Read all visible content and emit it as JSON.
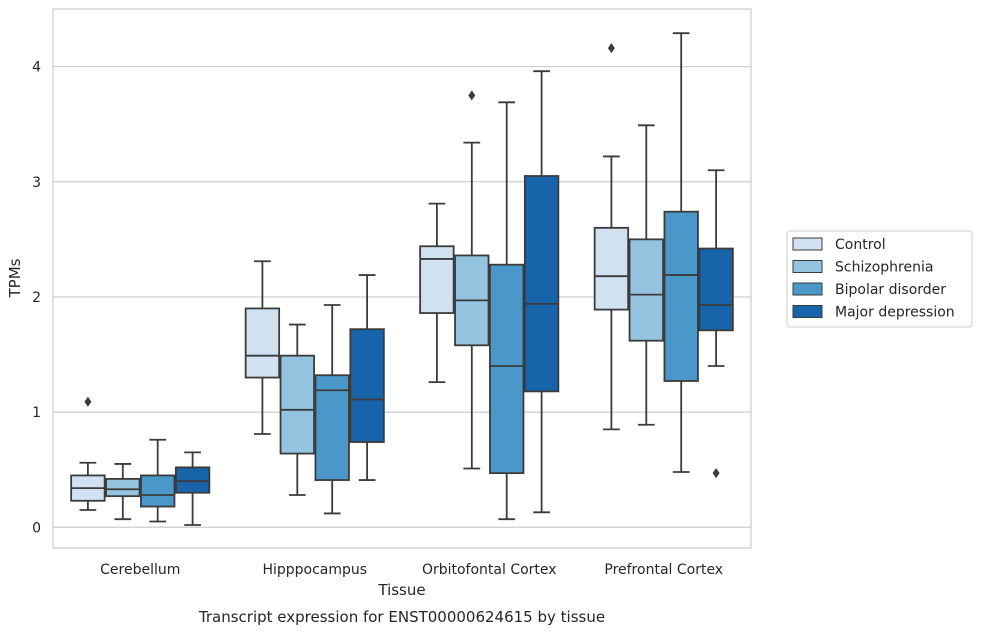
{
  "chart_data": {
    "type": "box",
    "title": "",
    "caption": "Transcript expression for ENST00000624615 by tissue",
    "xlabel": "Tissue",
    "ylabel": "TPMs",
    "ylim": [
      -0.18,
      4.5
    ],
    "yticks": [
      "0",
      "1",
      "2",
      "3",
      "4"
    ],
    "grid": "horizontal",
    "legend_position": "right",
    "categories": [
      "Cerebellum",
      "Hipppocampus",
      "Orbitofontal Cortex",
      "Prefrontal Cortex"
    ],
    "series": [
      {
        "name": "Control",
        "color": "#d0e1f2",
        "boxes": [
          {
            "whisker_low": 0.15,
            "q1": 0.23,
            "median": 0.34,
            "q3": 0.45,
            "whisker_high": 0.56,
            "outliers": [
              1.09
            ]
          },
          {
            "whisker_low": 0.81,
            "q1": 1.3,
            "median": 1.49,
            "q3": 1.9,
            "whisker_high": 2.31,
            "outliers": []
          },
          {
            "whisker_low": 1.26,
            "q1": 1.86,
            "median": 2.33,
            "q3": 2.44,
            "whisker_high": 2.81,
            "outliers": []
          },
          {
            "whisker_low": 0.85,
            "q1": 1.89,
            "median": 2.18,
            "q3": 2.6,
            "whisker_high": 3.22,
            "outliers": [
              4.16
            ]
          }
        ]
      },
      {
        "name": "Schizophrenia",
        "color": "#94c4df",
        "boxes": [
          {
            "whisker_low": 0.07,
            "q1": 0.27,
            "median": 0.33,
            "q3": 0.42,
            "whisker_high": 0.55,
            "outliers": []
          },
          {
            "whisker_low": 0.28,
            "q1": 0.64,
            "median": 1.02,
            "q3": 1.49,
            "whisker_high": 1.76,
            "outliers": []
          },
          {
            "whisker_low": 0.51,
            "q1": 1.58,
            "median": 1.97,
            "q3": 2.36,
            "whisker_high": 3.34,
            "outliers": [
              3.75
            ]
          },
          {
            "whisker_low": 0.89,
            "q1": 1.62,
            "median": 2.02,
            "q3": 2.5,
            "whisker_high": 3.49,
            "outliers": []
          }
        ]
      },
      {
        "name": "Bipolar disorder",
        "color": "#4a98c9",
        "boxes": [
          {
            "whisker_low": 0.05,
            "q1": 0.18,
            "median": 0.28,
            "q3": 0.45,
            "whisker_high": 0.76,
            "outliers": []
          },
          {
            "whisker_low": 0.12,
            "q1": 0.41,
            "median": 1.19,
            "q3": 1.32,
            "whisker_high": 1.93,
            "outliers": []
          },
          {
            "whisker_low": 0.07,
            "q1": 0.47,
            "median": 1.4,
            "q3": 2.28,
            "whisker_high": 3.69,
            "outliers": []
          },
          {
            "whisker_low": 0.48,
            "q1": 1.27,
            "median": 2.19,
            "q3": 2.74,
            "whisker_high": 4.29,
            "outliers": []
          }
        ]
      },
      {
        "name": "Major depression",
        "color": "#1764ab",
        "boxes": [
          {
            "whisker_low": 0.02,
            "q1": 0.3,
            "median": 0.4,
            "q3": 0.52,
            "whisker_high": 0.65,
            "outliers": []
          },
          {
            "whisker_low": 0.41,
            "q1": 0.74,
            "median": 1.11,
            "q3": 1.72,
            "whisker_high": 2.19,
            "outliers": []
          },
          {
            "whisker_low": 0.13,
            "q1": 1.18,
            "median": 1.94,
            "q3": 3.05,
            "whisker_high": 3.96,
            "outliers": []
          },
          {
            "whisker_low": 1.4,
            "q1": 1.71,
            "median": 1.93,
            "q3": 2.42,
            "whisker_high": 3.1,
            "outliers": [
              0.47
            ]
          }
        ]
      }
    ]
  }
}
